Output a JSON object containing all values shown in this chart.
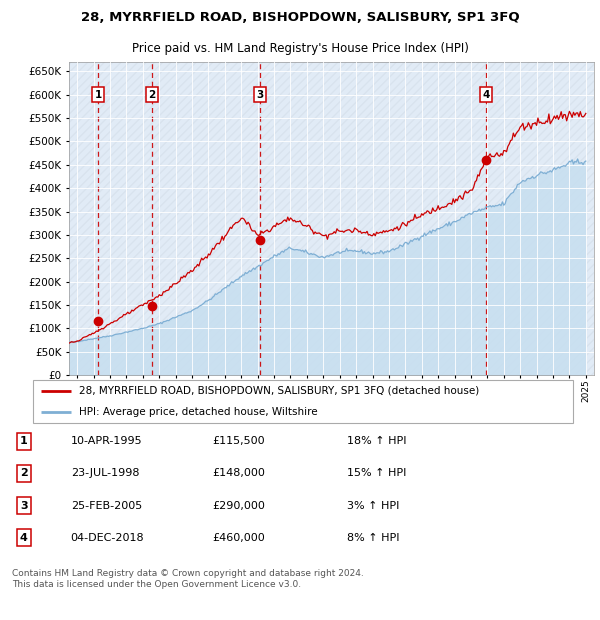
{
  "title": "28, MYRRFIELD ROAD, BISHOPDOWN, SALISBURY, SP1 3FQ",
  "subtitle": "Price paid vs. HM Land Registry's House Price Index (HPI)",
  "ylim": [
    0,
    670000
  ],
  "yticks": [
    0,
    50000,
    100000,
    150000,
    200000,
    250000,
    300000,
    350000,
    400000,
    450000,
    500000,
    550000,
    600000,
    650000
  ],
  "xlim_start": 1993.5,
  "xlim_end": 2025.5,
  "transactions": [
    {
      "num": 1,
      "date": "10-APR-1995",
      "year": 1995.27,
      "price": 115500,
      "pct": "18%",
      "dir": "↑"
    },
    {
      "num": 2,
      "date": "23-JUL-1998",
      "year": 1998.55,
      "price": 148000,
      "pct": "15%",
      "dir": "↑"
    },
    {
      "num": 3,
      "date": "25-FEB-2005",
      "year": 2005.13,
      "price": 290000,
      "pct": "3%",
      "dir": "↑"
    },
    {
      "num": 4,
      "date": "04-DEC-2018",
      "year": 2018.92,
      "price": 460000,
      "pct": "8%",
      "dir": "↑"
    }
  ],
  "legend_label_property": "28, MYRRFIELD ROAD, BISHOPDOWN, SALISBURY, SP1 3FQ (detached house)",
  "legend_label_hpi": "HPI: Average price, detached house, Wiltshire",
  "footer": "Contains HM Land Registry data © Crown copyright and database right 2024.\nThis data is licensed under the Open Government Licence v3.0.",
  "property_color": "#cc0000",
  "hpi_line_color": "#7fafd4",
  "hpi_fill_color": "#c8dff0",
  "vline_color": "#cc0000",
  "plot_bg_color": "#dce8f5",
  "grid_color": "#ffffff",
  "hatch_color": "#c8c8c8",
  "hpi_yearly": [
    68000,
    72000,
    78000,
    84000,
    92000,
    100000,
    110000,
    124000,
    138000,
    160000,
    186000,
    212000,
    232000,
    254000,
    272000,
    262000,
    252000,
    263000,
    266000,
    260000,
    265000,
    280000,
    298000,
    313000,
    328000,
    346000,
    358000,
    366000,
    413000,
    428000,
    438000,
    453000,
    458000
  ],
  "prop_yearly": [
    68000,
    72000,
    90000,
    110000,
    130000,
    150000,
    170000,
    196000,
    224000,
    258000,
    298000,
    338000,
    298000,
    318000,
    336000,
    318000,
    298000,
    308000,
    310000,
    302000,
    308000,
    323000,
    342000,
    358000,
    374000,
    393000,
    465000,
    478000,
    530000,
    540000,
    550000,
    558000,
    560000
  ]
}
